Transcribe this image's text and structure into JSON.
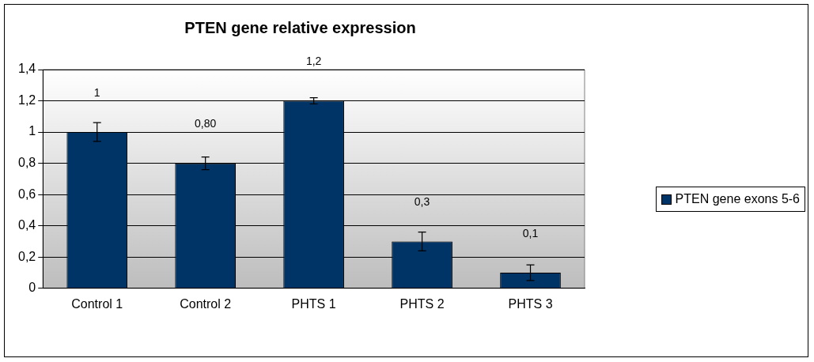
{
  "chart_data": {
    "type": "bar",
    "title": "PTEN gene relative expression",
    "categories": [
      "Control 1",
      "Control 2",
      "PHTS 1",
      "PHTS 2",
      "PHTS 3"
    ],
    "series": [
      {
        "name": "PTEN gene exons 5-6",
        "color": "#003366",
        "values": [
          1,
          0.8,
          1.2,
          0.3,
          0.1
        ],
        "errors": [
          0.06,
          0.04,
          0.02,
          0.06,
          0.05
        ],
        "value_labels": [
          "1",
          "0,80",
          "1,2",
          "0,3",
          "0,1"
        ]
      }
    ],
    "ylim": [
      0,
      1.4
    ],
    "yticks": [
      {
        "value": 0,
        "label": "0"
      },
      {
        "value": 0.2,
        "label": "0,2"
      },
      {
        "value": 0.4,
        "label": "0,4"
      },
      {
        "value": 0.6,
        "label": "0,6"
      },
      {
        "value": 0.8,
        "label": "0,8"
      },
      {
        "value": 1,
        "label": "1"
      },
      {
        "value": 1.2,
        "label": "1,2"
      },
      {
        "value": 1.4,
        "label": "1,4"
      }
    ],
    "grid": "y",
    "legend": "right"
  }
}
